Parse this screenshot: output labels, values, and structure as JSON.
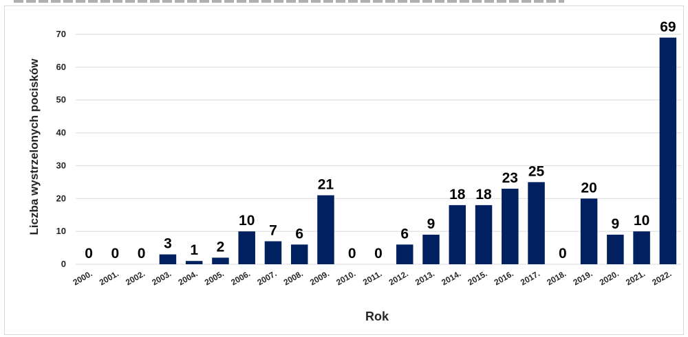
{
  "chart_data": {
    "type": "bar",
    "title": "",
    "xlabel": "Rok",
    "ylabel": "Liczba wystrzelonych pocisków",
    "ylim": [
      0,
      70
    ],
    "yticks": [
      "0",
      "10",
      "20",
      "30",
      "40",
      "50",
      "60",
      "70"
    ],
    "grid": true,
    "categories": [
      "2000.",
      "2001.",
      "2002.",
      "2003.",
      "2004.",
      "2005.",
      "2006.",
      "2007.",
      "2008.",
      "2009.",
      "2010.",
      "2011.",
      "2012.",
      "2013.",
      "2014.",
      "2015.",
      "2016.",
      "2017.",
      "2018.",
      "2019.",
      "2020.",
      "2021.",
      "2022."
    ],
    "values": [
      0,
      0,
      0,
      3,
      1,
      2,
      10,
      7,
      6,
      21,
      0,
      0,
      6,
      9,
      18,
      18,
      23,
      25,
      0,
      20,
      9,
      10,
      69
    ],
    "data_labels": [
      "0",
      "0",
      "0",
      "3",
      "1",
      "2",
      "10",
      "7",
      "6",
      "21",
      "0",
      "0",
      "6",
      "9",
      "18",
      "18",
      "23",
      "25",
      "0",
      "20",
      "9",
      "10",
      "69"
    ],
    "colors": {
      "bar": "#002060",
      "grid": "#d9d9d9",
      "text": "#000000",
      "axis_text": "#262626"
    }
  }
}
